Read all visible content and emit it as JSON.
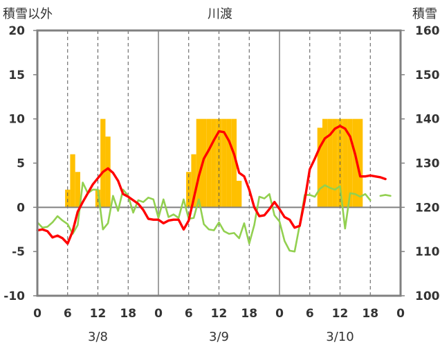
{
  "chart_data": {
    "type": "bar+line",
    "title": "川渡",
    "ylabel_left": "積雪以外",
    "ylabel_right": "積雪",
    "ylim_left": [
      -10,
      20
    ],
    "ylim_right": [
      100,
      160
    ],
    "yticks_left": [
      -10,
      -5,
      0,
      5,
      10,
      15,
      20
    ],
    "yticks_right": [
      100,
      110,
      120,
      130,
      140,
      150,
      160
    ],
    "x_hours_range": [
      0,
      72
    ],
    "xtick_labels": [
      "0",
      "6",
      "12",
      "18",
      "0",
      "6",
      "12",
      "18",
      "0",
      "6",
      "12",
      "18",
      "0"
    ],
    "date_labels": [
      "3/8",
      "3/9",
      "3/10"
    ],
    "grid": "dashed vertical at 6h intervals; solid day separators",
    "colors": {
      "snow_bars": "#ffc000",
      "red_series": "#ff0000",
      "green_series": "#92d050",
      "axis": "#808080"
    },
    "snow_depth": [
      {
        "hour": 6,
        "value": 124
      },
      {
        "hour": 7,
        "value": 132
      },
      {
        "hour": 8,
        "value": 128
      },
      {
        "hour": 12,
        "value": 124
      },
      {
        "hour": 13,
        "value": 140
      },
      {
        "hour": 14,
        "value": 136
      },
      {
        "hour": 30,
        "value": 128
      },
      {
        "hour": 31,
        "value": 132
      },
      {
        "hour": 32,
        "value": 140
      },
      {
        "hour": 33,
        "value": 140
      },
      {
        "hour": 34,
        "value": 140
      },
      {
        "hour": 35,
        "value": 140
      },
      {
        "hour": 36,
        "value": 140
      },
      {
        "hour": 37,
        "value": 140
      },
      {
        "hour": 38,
        "value": 140
      },
      {
        "hour": 39,
        "value": 140
      },
      {
        "hour": 40,
        "value": 126
      },
      {
        "hour": 56,
        "value": 138
      },
      {
        "hour": 57,
        "value": 140
      },
      {
        "hour": 58,
        "value": 140
      },
      {
        "hour": 59,
        "value": 140
      },
      {
        "hour": 60,
        "value": 140
      },
      {
        "hour": 61,
        "value": 140
      },
      {
        "hour": 62,
        "value": 140
      },
      {
        "hour": 63,
        "value": 140
      },
      {
        "hour": 64,
        "value": 140
      }
    ],
    "red_series": [
      [
        0,
        -2.6
      ],
      [
        1,
        -2.5
      ],
      [
        2,
        -2.7
      ],
      [
        3,
        -3.4
      ],
      [
        4,
        -3.2
      ],
      [
        5,
        -3.5
      ],
      [
        6,
        -4.1
      ],
      [
        7,
        -2.7
      ],
      [
        8,
        -0.5
      ],
      [
        9,
        0.6
      ],
      [
        10,
        1.6
      ],
      [
        11,
        2.6
      ],
      [
        12,
        3.3
      ],
      [
        13,
        4.0
      ],
      [
        14,
        4.4
      ],
      [
        15,
        3.9
      ],
      [
        16,
        3.0
      ],
      [
        17,
        1.5
      ],
      [
        18,
        1.2
      ],
      [
        19,
        0.8
      ],
      [
        20,
        0.4
      ],
      [
        21,
        -0.3
      ],
      [
        22,
        -1.3
      ],
      [
        23,
        -1.4
      ],
      [
        24,
        -1.4
      ],
      [
        25,
        -1.8
      ],
      [
        26,
        -1.5
      ],
      [
        27,
        -1.4
      ],
      [
        28,
        -1.4
      ],
      [
        29,
        -2.5
      ],
      [
        30,
        -1.5
      ],
      [
        31,
        1.0
      ],
      [
        32,
        3.5
      ],
      [
        33,
        5.5
      ],
      [
        34,
        6.5
      ],
      [
        35,
        7.6
      ],
      [
        36,
        8.6
      ],
      [
        37,
        8.5
      ],
      [
        38,
        7.5
      ],
      [
        39,
        6.0
      ],
      [
        40,
        3.9
      ],
      [
        41,
        3.5
      ],
      [
        42,
        2.0
      ],
      [
        43,
        0.0
      ],
      [
        44,
        -1.0
      ],
      [
        45,
        -0.9
      ],
      [
        46,
        -0.2
      ],
      [
        47,
        0.6
      ],
      [
        48,
        -0.2
      ],
      [
        49,
        -1.1
      ],
      [
        50,
        -1.4
      ],
      [
        51,
        -2.3
      ],
      [
        52,
        -2.1
      ],
      [
        53,
        0.8
      ],
      [
        54,
        4.3
      ],
      [
        55,
        5.5
      ],
      [
        56,
        6.8
      ],
      [
        57,
        7.8
      ],
      [
        58,
        8.2
      ],
      [
        59,
        8.9
      ],
      [
        60,
        9.2
      ],
      [
        61,
        8.9
      ],
      [
        62,
        8.0
      ],
      [
        63,
        6.0
      ],
      [
        64,
        3.5
      ],
      [
        65,
        3.5
      ],
      [
        66,
        3.6
      ],
      [
        67,
        3.5
      ],
      [
        68,
        3.4
      ],
      [
        69,
        3.2
      ]
    ],
    "green_series": [
      [
        0,
        -1.7
      ],
      [
        1,
        -2.3
      ],
      [
        2,
        -2.2
      ],
      [
        3,
        -1.7
      ],
      [
        4,
        -1.0
      ],
      [
        5,
        -1.5
      ],
      [
        6,
        -1.9
      ],
      [
        7,
        -3.0
      ],
      [
        8,
        -2.0
      ],
      [
        9,
        2.8
      ],
      [
        10,
        1.6
      ],
      [
        11,
        2.0
      ],
      [
        12,
        2.0
      ],
      [
        13,
        -2.5
      ],
      [
        14,
        -1.8
      ],
      [
        15,
        1.3
      ],
      [
        16,
        -0.4
      ],
      [
        17,
        2.0
      ],
      [
        18,
        1.3
      ],
      [
        19,
        -0.6
      ],
      [
        20,
        0.8
      ],
      [
        21,
        0.6
      ],
      [
        22,
        1.1
      ],
      [
        23,
        0.9
      ],
      [
        24,
        -1.2
      ],
      [
        25,
        0.9
      ],
      [
        26,
        -1.1
      ],
      [
        27,
        -0.8
      ],
      [
        28,
        -1.2
      ],
      [
        29,
        0.9
      ],
      [
        30,
        -1.3
      ],
      [
        31,
        -1.2
      ],
      [
        32,
        0.9
      ],
      [
        33,
        -1.9
      ],
      [
        34,
        -2.5
      ],
      [
        35,
        -2.6
      ],
      [
        36,
        -1.7
      ],
      [
        37,
        -2.7
      ],
      [
        38,
        -3.0
      ],
      [
        39,
        -2.9
      ],
      [
        40,
        -3.5
      ],
      [
        41,
        -1.8
      ],
      [
        42,
        -4.1
      ],
      [
        43,
        -2.0
      ],
      [
        44,
        1.2
      ],
      [
        45,
        1.0
      ],
      [
        46,
        1.5
      ],
      [
        47,
        -0.9
      ],
      [
        48,
        -1.6
      ],
      [
        49,
        -3.8
      ],
      [
        50,
        -4.9
      ],
      [
        51,
        -5.0
      ],
      [
        52,
        -2.0
      ],
      [
        53,
        1.4
      ],
      [
        54,
        1.4
      ],
      [
        55,
        1.2
      ],
      [
        56,
        2.1
      ],
      [
        57,
        2.5
      ],
      [
        58,
        2.2
      ],
      [
        59,
        2.0
      ],
      [
        60,
        2.4
      ],
      [
        61,
        -2.4
      ],
      [
        62,
        1.6
      ],
      [
        63,
        1.5
      ],
      [
        64,
        1.2
      ],
      [
        65,
        1.5
      ],
      [
        66,
        0.8
      ],
      [
        68,
        1.3
      ],
      [
        69,
        1.4
      ],
      [
        70,
        1.3
      ]
    ]
  }
}
